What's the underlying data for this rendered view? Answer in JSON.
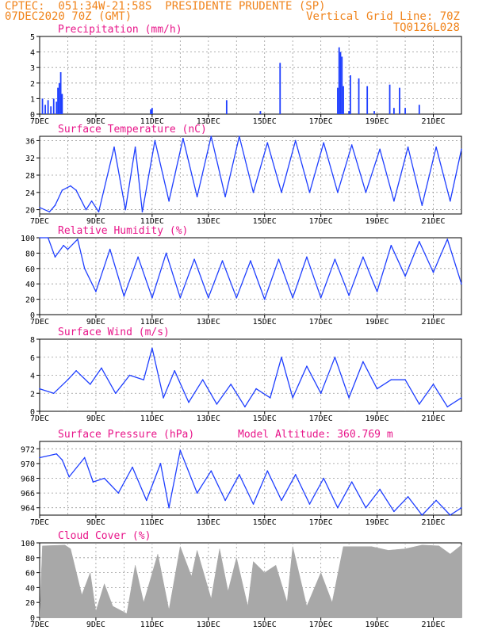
{
  "header": {
    "line1": "CPTEC:  051:34W-21:58S  PRESIDENTE PRUDENTE (SP)",
    "line2_left": "07DEC2020 70Z (GMT)",
    "line2_right": "Vertical Grid Line: 70Z",
    "line3_right": "TQ0126L028"
  },
  "colors": {
    "header": "#f0841c",
    "title": "#e8168a",
    "series": "#1f3fff",
    "cloud": "#a8a8a8"
  },
  "chart_data": [
    {
      "type": "bar",
      "title": "Precipitation (mm/h)",
      "ylim": [
        0,
        5
      ],
      "yticks": [
        0,
        1,
        2,
        3,
        4,
        5
      ],
      "xticks": [
        "7DEC",
        "9DEC",
        "11DEC",
        "13DEC",
        "15DEC",
        "17DEC",
        "19DEC",
        "21DEC"
      ],
      "x": [
        0.1,
        0.2,
        0.3,
        0.4,
        0.5,
        0.6,
        0.65,
        0.7,
        0.75,
        0.8,
        3.95,
        4.0,
        6.65,
        7.85,
        8.55,
        10.6,
        10.65,
        10.7,
        10.75,
        10.8,
        11.0,
        11.05,
        11.35,
        11.65,
        11.9,
        12.45,
        12.6,
        12.8,
        13.0,
        13.5
      ],
      "values": [
        1.0,
        0.6,
        0.9,
        0.5,
        1.0,
        0.8,
        1.7,
        2.0,
        2.7,
        1.3,
        0.3,
        0.4,
        0.9,
        0.2,
        3.3,
        1.7,
        4.3,
        4.0,
        3.7,
        1.8,
        0.2,
        2.5,
        2.3,
        1.8,
        0.2,
        1.9,
        0.4,
        1.7,
        0.4,
        0.6
      ]
    },
    {
      "type": "line",
      "title": "Surface Temperature (nC)",
      "ylim": [
        19,
        37
      ],
      "yticks": [
        20,
        24,
        28,
        32,
        36
      ],
      "xticks": [
        "7DEC",
        "9DEC",
        "11DEC",
        "13DEC",
        "15DEC",
        "17DEC",
        "19DEC",
        "21DEC"
      ],
      "x": [
        0,
        0.35,
        0.55,
        0.8,
        1.1,
        1.3,
        1.65,
        1.85,
        2.1,
        2.65,
        3.05,
        3.4,
        3.65,
        4.1,
        4.6,
        5.1,
        5.6,
        6.1,
        6.6,
        7.1,
        7.6,
        8.1,
        8.6,
        9.1,
        9.6,
        10.1,
        10.6,
        11.1,
        11.6,
        12.1,
        12.6,
        13.1,
        13.6,
        14.1,
        14.6,
        15.0
      ],
      "values": [
        20.5,
        19.5,
        21,
        24.5,
        25.5,
        24.5,
        20,
        22,
        19.5,
        34.5,
        20,
        34.5,
        19.5,
        36,
        22,
        36.5,
        23,
        37,
        23,
        37,
        24,
        35.5,
        24,
        36,
        24,
        35.5,
        24,
        35,
        24,
        34,
        22,
        34.5,
        21,
        34.5,
        22,
        34
      ]
    },
    {
      "type": "line",
      "title": "Relative Humidity (%)",
      "ylim": [
        0,
        100
      ],
      "yticks": [
        0,
        20,
        40,
        60,
        80,
        100
      ],
      "xticks": [
        "7DEC",
        "9DEC",
        "11DEC",
        "13DEC",
        "15DEC",
        "17DEC",
        "19DEC",
        "21DEC"
      ],
      "x": [
        0,
        0.3,
        0.55,
        0.85,
        1.0,
        1.35,
        1.6,
        2.0,
        2.5,
        3.0,
        3.5,
        4.0,
        4.5,
        5.0,
        5.5,
        6.0,
        6.5,
        7.0,
        7.5,
        8.0,
        8.5,
        9.0,
        9.5,
        10.0,
        10.5,
        11.0,
        11.5,
        12.0,
        12.5,
        13.0,
        13.5,
        14.0,
        14.5,
        15.0
      ],
      "values": [
        100,
        100,
        75,
        90,
        85,
        98,
        60,
        30,
        85,
        24,
        75,
        22,
        80,
        22,
        72,
        22,
        70,
        22,
        70,
        20,
        72,
        22,
        75,
        22,
        72,
        25,
        75,
        30,
        90,
        50,
        95,
        55,
        98,
        40
      ]
    },
    {
      "type": "line",
      "title": "Surface Wind (m/s)",
      "ylim": [
        0,
        8
      ],
      "yticks": [
        0,
        2,
        4,
        6,
        8
      ],
      "xticks": [
        "7DEC",
        "9DEC",
        "11DEC",
        "13DEC",
        "15DEC",
        "17DEC",
        "19DEC",
        "21DEC"
      ],
      "x": [
        0,
        0.5,
        1.0,
        1.3,
        1.8,
        2.2,
        2.7,
        3.2,
        3.7,
        4.0,
        4.4,
        4.8,
        5.3,
        5.8,
        6.3,
        6.8,
        7.3,
        7.7,
        8.2,
        8.6,
        9.0,
        9.5,
        10.0,
        10.5,
        11.0,
        11.5,
        12.0,
        12.5,
        13.0,
        13.5,
        14.0,
        14.5,
        15.0
      ],
      "values": [
        2.5,
        2.0,
        3.5,
        4.5,
        3.0,
        4.8,
        2.0,
        4.0,
        3.5,
        7.0,
        1.5,
        4.5,
        1.0,
        3.5,
        0.8,
        3.0,
        0.5,
        2.5,
        1.5,
        6.0,
        1.5,
        5.0,
        2.0,
        6.0,
        1.5,
        5.5,
        2.5,
        3.5,
        3.5,
        0.8,
        3.0,
        0.5,
        1.5
      ]
    },
    {
      "type": "line",
      "title": "Surface Pressure (hPa)",
      "subtitle": "Model Altitude: 360.769 m",
      "ylim": [
        963,
        973
      ],
      "yticks": [
        964,
        966,
        968,
        970,
        972
      ],
      "xticks": [
        "7DEC",
        "9DEC",
        "11DEC",
        "13DEC",
        "15DEC",
        "17DEC",
        "19DEC",
        "21DEC"
      ],
      "x": [
        0,
        0.6,
        0.8,
        1.05,
        1.6,
        1.9,
        2.3,
        2.8,
        3.3,
        3.8,
        4.3,
        4.6,
        5.0,
        5.6,
        6.1,
        6.6,
        7.1,
        7.6,
        8.1,
        8.6,
        9.1,
        9.6,
        10.1,
        10.6,
        11.1,
        11.6,
        12.1,
        12.6,
        13.1,
        13.6,
        14.1,
        14.6,
        15.0
      ],
      "values": [
        970.8,
        971.3,
        970.5,
        968.2,
        970.8,
        967.5,
        968,
        966,
        969.5,
        965,
        970,
        964,
        971.8,
        966,
        969,
        965,
        968.5,
        964.5,
        969,
        965,
        968.5,
        964.5,
        968,
        964,
        967.5,
        964,
        966.5,
        963.5,
        965.5,
        963,
        965,
        963,
        964
      ]
    },
    {
      "type": "area",
      "title": "Cloud Cover (%)",
      "ylim": [
        0,
        100
      ],
      "yticks": [
        0,
        20,
        40,
        60,
        80,
        100
      ],
      "xticks": [
        "7DEC",
        "9DEC",
        "11DEC",
        "13DEC",
        "15DEC",
        "17DEC",
        "19DEC",
        "21DEC"
      ],
      "x": [
        0,
        0.1,
        0.9,
        1.1,
        1.5,
        1.8,
        2.0,
        2.3,
        2.6,
        3.1,
        3.4,
        3.7,
        4.2,
        4.6,
        5.0,
        5.4,
        5.6,
        6.1,
        6.4,
        6.7,
        7.0,
        7.4,
        7.6,
        8.0,
        8.4,
        8.8,
        9.0,
        9.5,
        10.0,
        10.4,
        10.8,
        11.3,
        11.8,
        12.4,
        13.0,
        13.6,
        14.2,
        14.6,
        15.0
      ],
      "values": [
        0,
        96,
        97,
        92,
        30,
        60,
        8,
        45,
        15,
        5,
        70,
        20,
        85,
        10,
        95,
        55,
        90,
        25,
        92,
        35,
        80,
        15,
        75,
        60,
        70,
        20,
        95,
        15,
        60,
        20,
        95,
        95,
        95,
        90,
        92,
        97,
        96,
        85,
        97
      ]
    }
  ]
}
